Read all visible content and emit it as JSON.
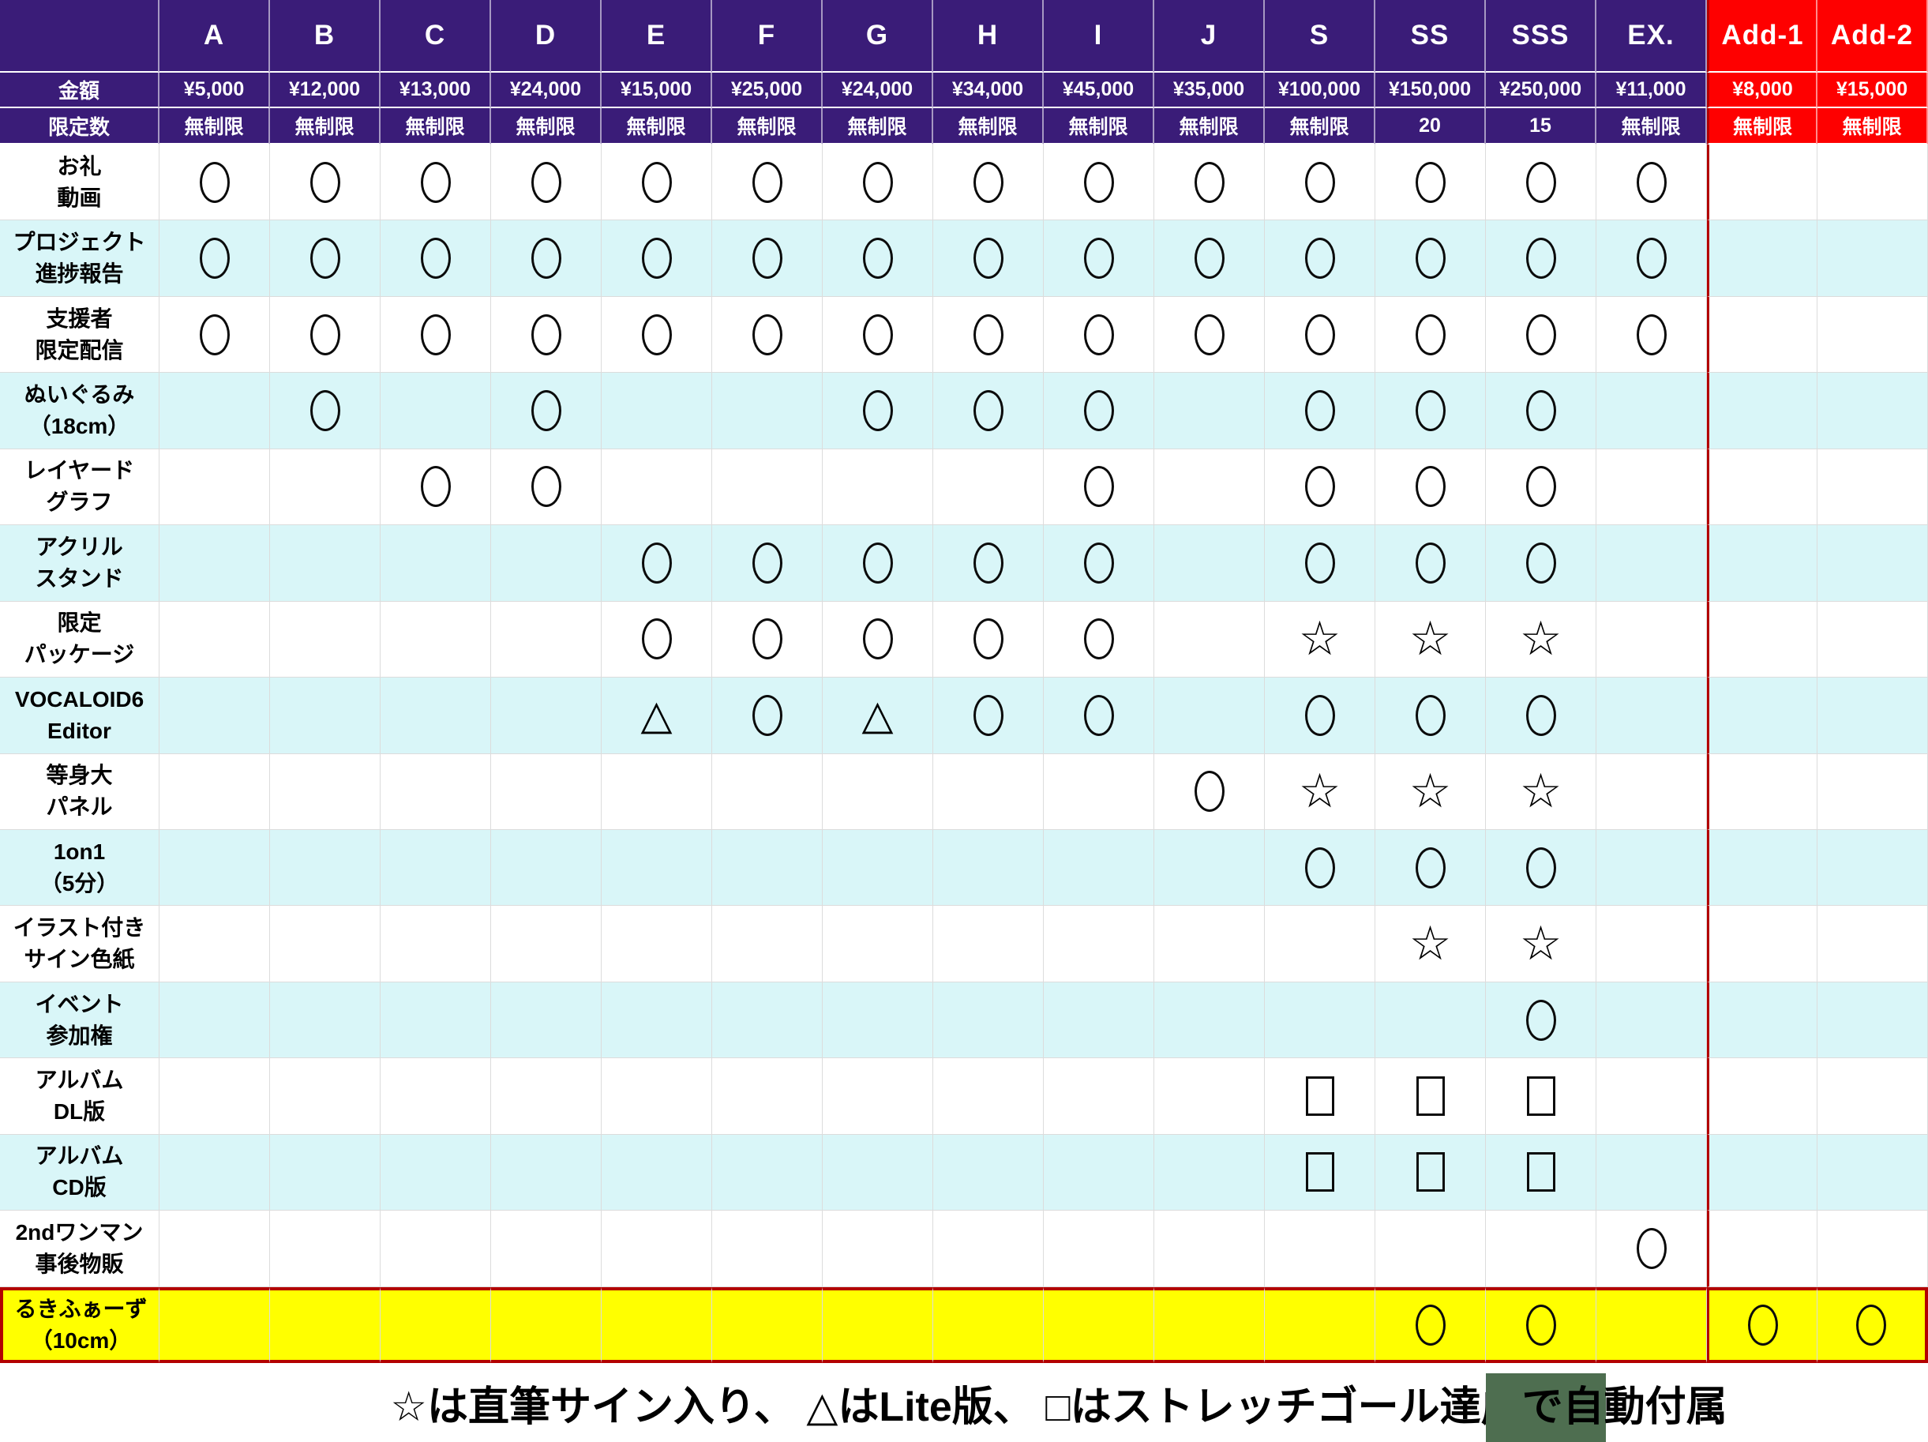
{
  "table": {
    "corner_label": "",
    "amount_row_label": "金額",
    "limit_row_label": "限定数",
    "columns": [
      {
        "id": "A",
        "amount": "¥5,000",
        "limit": "無制限",
        "style": "normal"
      },
      {
        "id": "B",
        "amount": "¥12,000",
        "limit": "無制限",
        "style": "normal"
      },
      {
        "id": "C",
        "amount": "¥13,000",
        "limit": "無制限",
        "style": "normal"
      },
      {
        "id": "D",
        "amount": "¥24,000",
        "limit": "無制限",
        "style": "normal"
      },
      {
        "id": "E",
        "amount": "¥15,000",
        "limit": "無制限",
        "style": "normal"
      },
      {
        "id": "F",
        "amount": "¥25,000",
        "limit": "無制限",
        "style": "normal"
      },
      {
        "id": "G",
        "amount": "¥24,000",
        "limit": "無制限",
        "style": "normal"
      },
      {
        "id": "H",
        "amount": "¥34,000",
        "limit": "無制限",
        "style": "normal"
      },
      {
        "id": "I",
        "amount": "¥45,000",
        "limit": "無制限",
        "style": "normal"
      },
      {
        "id": "J",
        "amount": "¥35,000",
        "limit": "無制限",
        "style": "normal"
      },
      {
        "id": "S",
        "amount": "¥100,000",
        "limit": "無制限",
        "style": "normal"
      },
      {
        "id": "SS",
        "amount": "¥150,000",
        "limit": "20",
        "style": "normal"
      },
      {
        "id": "SSS",
        "amount": "¥250,000",
        "limit": "15",
        "style": "normal"
      },
      {
        "id": "EX.",
        "amount": "¥11,000",
        "limit": "無制限",
        "style": "normal"
      },
      {
        "id": "Add-1",
        "amount": "¥8,000",
        "limit": "無制限",
        "style": "addon"
      },
      {
        "id": "Add-2",
        "amount": "¥15,000",
        "limit": "無制限",
        "style": "addon"
      }
    ],
    "rows": [
      {
        "label": [
          "お礼",
          "動画"
        ],
        "bg": "white",
        "cells": [
          "circle",
          "circle",
          "circle",
          "circle",
          "circle",
          "circle",
          "circle",
          "circle",
          "circle",
          "circle",
          "circle",
          "circle",
          "circle",
          "circle",
          "",
          ""
        ]
      },
      {
        "label": [
          "プロジェクト",
          "進捗報告"
        ],
        "bg": "cyan",
        "cells": [
          "circle",
          "circle",
          "circle",
          "circle",
          "circle",
          "circle",
          "circle",
          "circle",
          "circle",
          "circle",
          "circle",
          "circle",
          "circle",
          "circle",
          "",
          ""
        ]
      },
      {
        "label": [
          "支援者",
          "限定配信"
        ],
        "bg": "white",
        "cells": [
          "circle",
          "circle",
          "circle",
          "circle",
          "circle",
          "circle",
          "circle",
          "circle",
          "circle",
          "circle",
          "circle",
          "circle",
          "circle",
          "circle",
          "",
          ""
        ]
      },
      {
        "label": [
          "ぬいぐるみ",
          "（18cm）"
        ],
        "bg": "cyan",
        "cells": [
          "",
          "circle",
          "",
          "circle",
          "",
          "",
          "circle",
          "circle",
          "circle",
          "",
          "circle",
          "circle",
          "circle",
          "",
          "",
          ""
        ]
      },
      {
        "label": [
          "レイヤード",
          "グラフ"
        ],
        "bg": "white",
        "cells": [
          "",
          "",
          "circle",
          "circle",
          "",
          "",
          "",
          "",
          "circle",
          "",
          "circle",
          "circle",
          "circle",
          "",
          "",
          ""
        ]
      },
      {
        "label": [
          "アクリル",
          "スタンド"
        ],
        "bg": "cyan",
        "cells": [
          "",
          "",
          "",
          "",
          "circle",
          "circle",
          "circle",
          "circle",
          "circle",
          "",
          "circle",
          "circle",
          "circle",
          "",
          "",
          ""
        ]
      },
      {
        "label": [
          "限定",
          "パッケージ"
        ],
        "bg": "white",
        "cells": [
          "",
          "",
          "",
          "",
          "circle",
          "circle",
          "circle",
          "circle",
          "circle",
          "",
          "star",
          "star",
          "star",
          "",
          "",
          ""
        ]
      },
      {
        "label": [
          "VOCALOID6",
          "Editor"
        ],
        "bg": "cyan",
        "cells": [
          "",
          "",
          "",
          "",
          "triangle",
          "circle",
          "triangle",
          "circle",
          "circle",
          "",
          "circle",
          "circle",
          "circle",
          "",
          "",
          ""
        ]
      },
      {
        "label": [
          "等身大",
          "パネル"
        ],
        "bg": "white",
        "cells": [
          "",
          "",
          "",
          "",
          "",
          "",
          "",
          "",
          "",
          "circle",
          "star",
          "star",
          "star",
          "",
          "",
          ""
        ]
      },
      {
        "label": [
          "1on1",
          "（5分）"
        ],
        "bg": "cyan",
        "cells": [
          "",
          "",
          "",
          "",
          "",
          "",
          "",
          "",
          "",
          "",
          "circle",
          "circle",
          "circle",
          "",
          "",
          ""
        ]
      },
      {
        "label": [
          "イラスト付き",
          "サイン色紙"
        ],
        "bg": "white",
        "cells": [
          "",
          "",
          "",
          "",
          "",
          "",
          "",
          "",
          "",
          "",
          "",
          "star",
          "star",
          "",
          "",
          ""
        ]
      },
      {
        "label": [
          "イベント",
          "参加権"
        ],
        "bg": "cyan",
        "cells": [
          "",
          "",
          "",
          "",
          "",
          "",
          "",
          "",
          "",
          "",
          "",
          "",
          "circle",
          "",
          "",
          ""
        ]
      },
      {
        "label": [
          "アルバム",
          "DL版"
        ],
        "bg": "white",
        "cells": [
          "",
          "",
          "",
          "",
          "",
          "",
          "",
          "",
          "",
          "",
          "square",
          "square",
          "square",
          "",
          "",
          ""
        ]
      },
      {
        "label": [
          "アルバム",
          "CD版"
        ],
        "bg": "cyan",
        "cells": [
          "",
          "",
          "",
          "",
          "",
          "",
          "",
          "",
          "",
          "",
          "square",
          "square",
          "square",
          "",
          "",
          ""
        ]
      },
      {
        "label": [
          "2ndワンマン",
          "事後物販"
        ],
        "bg": "white",
        "cells": [
          "",
          "",
          "",
          "",
          "",
          "",
          "",
          "",
          "",
          "",
          "",
          "",
          "",
          "circle",
          "",
          ""
        ]
      },
      {
        "label": [
          "るきふぁーず",
          "（10cm）"
        ],
        "bg": "yellow",
        "cells": [
          "",
          "",
          "",
          "",
          "",
          "",
          "",
          "",
          "",
          "",
          "",
          "circle",
          "circle",
          "",
          "circle",
          "circle"
        ]
      }
    ]
  },
  "symbols": {
    "circle": "○",
    "triangle": "△",
    "star": "☆",
    "square": "□"
  },
  "legend": {
    "before": "☆は直筆サイン入り、 △はLite版、 □はストレッチゴール達成",
    "highlighted": "で自",
    "after": "動付属"
  },
  "colors": {
    "header_purple": "#3a1c78",
    "addon_red": "#fe0000",
    "row_cyan": "#d9f6f8",
    "row_yellow": "#ffff00",
    "accent_border_dark_red": "#b30000",
    "legend_highlight_green": "#4e6e50"
  }
}
